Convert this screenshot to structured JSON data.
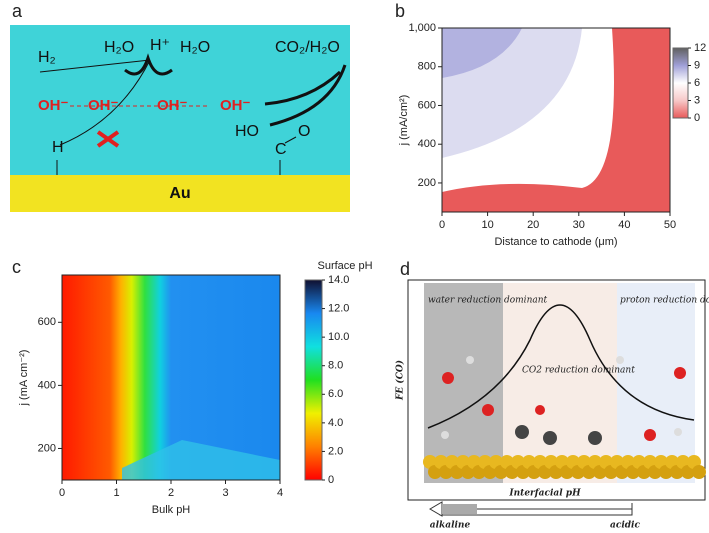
{
  "panels": {
    "a": "a",
    "b": "b",
    "c": "c",
    "d": "d"
  },
  "diagram_a": {
    "h2": "H₂",
    "h2o_left": "H₂O",
    "h_plus": "H⁺",
    "h2o_right": "H₂O",
    "co2_h2o": "CO₂/H₂O",
    "oh": [
      "OH⁻",
      "OH⁻",
      "OH⁻",
      "OH⁻"
    ],
    "h": "H",
    "ho": "HO",
    "c": "C",
    "o": "O",
    "au": "Au"
  },
  "diagram_d": {
    "water": "water reduction dominant",
    "co2": "CO2 reduction dominant",
    "proton": "proton reduction dominant",
    "y_label": "FE (CO)",
    "arrow_label": "Interfacial pH",
    "left": "alkaline",
    "right": "acidic"
  },
  "chart_data": [
    {
      "type": "contour",
      "x_label": "Distance to cathode (μm)",
      "y_label": "j (mA/cm²)",
      "xlim": [
        0,
        50
      ],
      "xticks": [
        0,
        10,
        20,
        30,
        40,
        50
      ],
      "ylim": [
        50,
        1000
      ],
      "yticks": [
        200,
        400,
        600,
        800,
        {
          "value": 1000,
          "label": "1,000"
        }
      ],
      "zlim": [
        0,
        12
      ],
      "zticks": [
        0,
        3,
        6,
        9,
        12
      ],
      "colormap": [
        "#e85a5a",
        "#f7c8c8",
        "#ffffff",
        "#a0a0d8",
        "#606060"
      ]
    },
    {
      "type": "contour",
      "title": "Surface pH",
      "x_label": "Bulk pH",
      "y_label": "j (mA cm⁻²)",
      "xlim": [
        0,
        4
      ],
      "xticks": [
        0,
        1,
        2,
        3,
        4
      ],
      "ylim": [
        100,
        750
      ],
      "yticks": [
        200,
        400,
        600
      ],
      "zlim": [
        0,
        14
      ],
      "zticks": [
        {
          "value": 0,
          "label": "0"
        },
        {
          "value": 2,
          "label": "2.0"
        },
        {
          "value": 4,
          "label": "4.0"
        },
        {
          "value": 6,
          "label": "6.0"
        },
        {
          "value": 8,
          "label": "8.0"
        },
        {
          "value": 10,
          "label": "10.0"
        },
        {
          "value": 12,
          "label": "12.0"
        },
        {
          "value": 14,
          "label": "14.0"
        }
      ],
      "colormap": [
        "#ff0000",
        "#ff8000",
        "#f0f000",
        "#20e020",
        "#10e0e0",
        "#1888f0",
        "#101030"
      ]
    }
  ]
}
